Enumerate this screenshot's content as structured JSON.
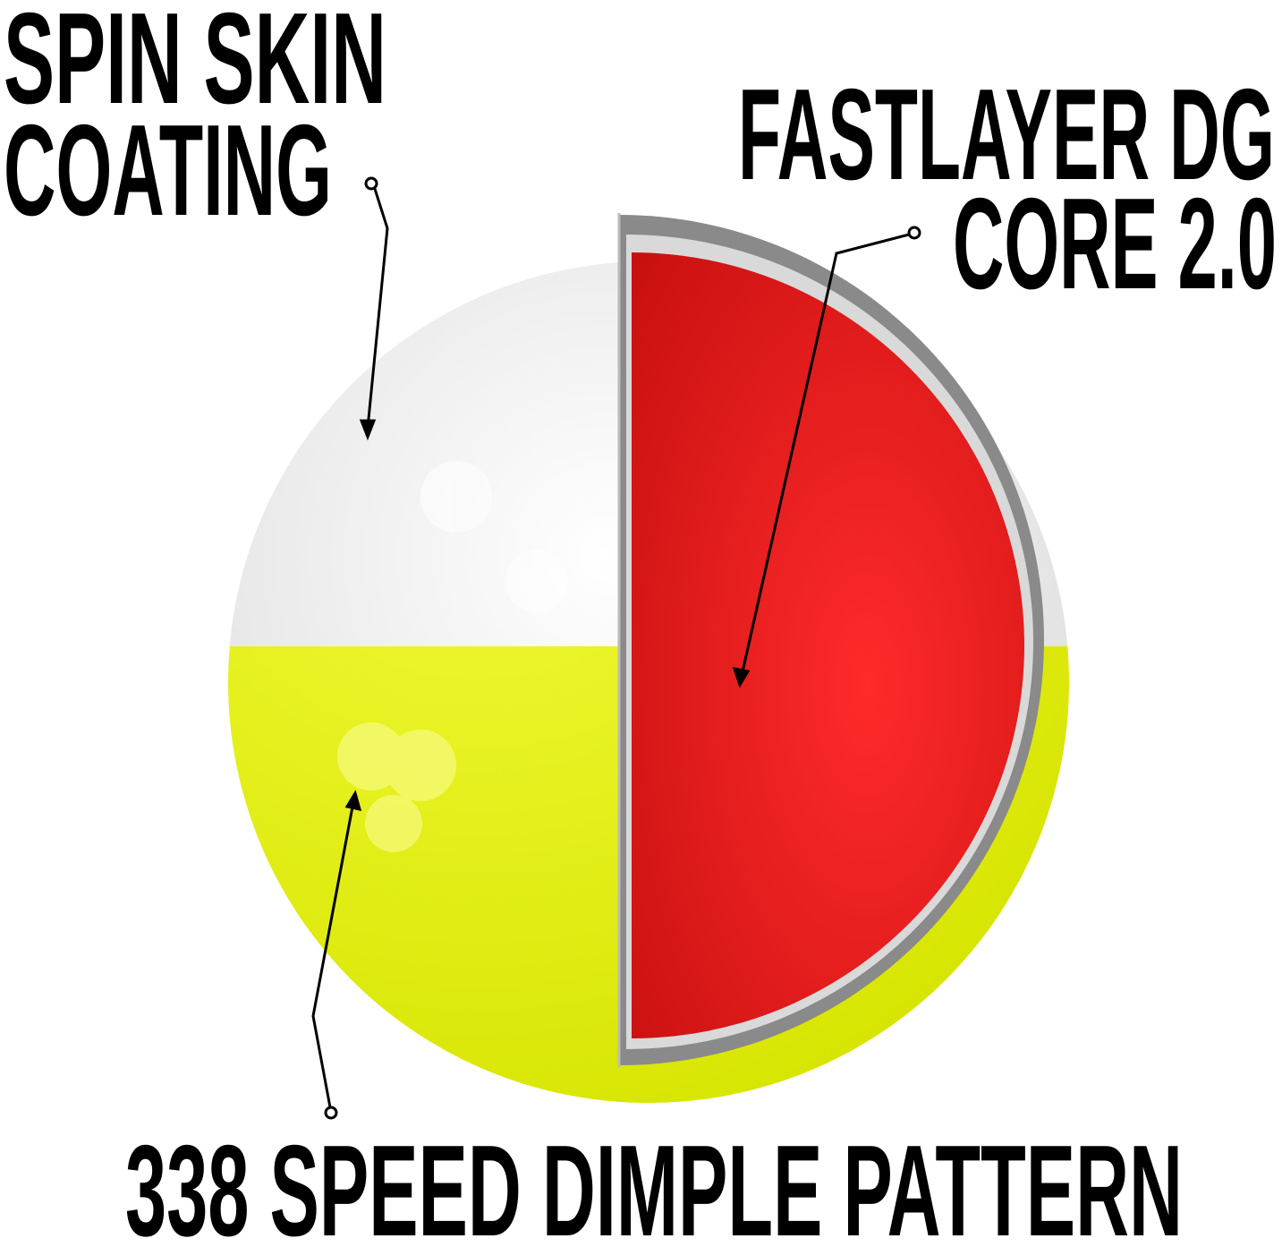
{
  "labels": {
    "spin_skin_line1": "SPIN SKIN",
    "spin_skin_line2": "COATING",
    "core_line1": "FASTLAYER DG",
    "core_line2": "CORE 2.0",
    "dimple": "338 SPEED DIMPLE PATTERN"
  },
  "colors": {
    "cover_white": "#f1f1f1",
    "cover_yellow": "#e2ee00",
    "core_red": "#f02424",
    "mantle_gray": "#8a8a8a",
    "text": "#000000"
  }
}
